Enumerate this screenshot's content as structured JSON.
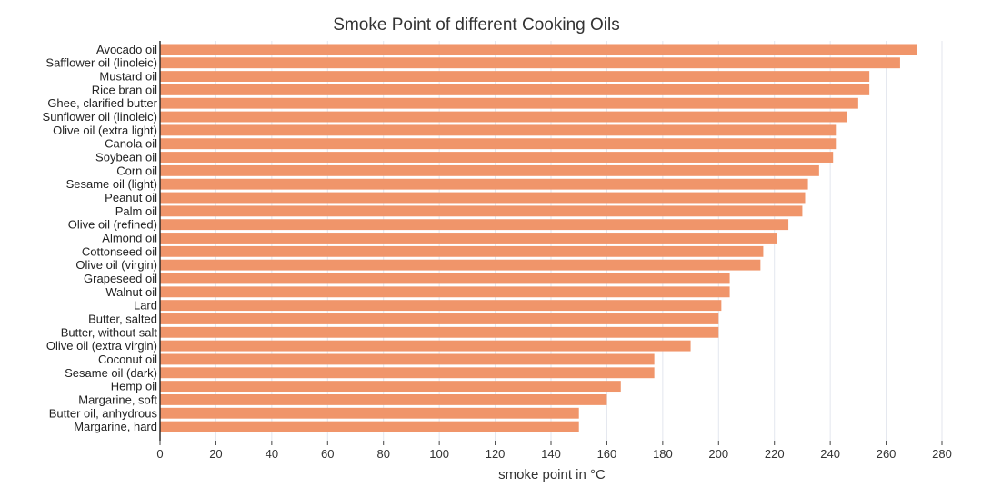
{
  "chart_data": {
    "type": "bar",
    "orientation": "horizontal",
    "title": "Smoke Point of different Cooking Oils",
    "xlabel": "smoke point in °C",
    "ylabel": "",
    "xlim": [
      0,
      280
    ],
    "xticks": [
      "0",
      "20",
      "40",
      "60",
      "80",
      "100",
      "120",
      "140",
      "160",
      "180",
      "200",
      "220",
      "240",
      "260",
      "280"
    ],
    "grid": "vertical",
    "bar_color": "#f0956a",
    "categories": [
      "Avocado oil",
      "Safflower oil (linoleic)",
      "Mustard oil",
      "Rice bran oil",
      "Ghee, clarified butter",
      "Sunflower oil (linoleic)",
      "Olive oil (extra light)",
      "Canola oil",
      "Soybean oil",
      "Corn oil",
      "Sesame oil (light)",
      "Peanut oil",
      "Palm oil",
      "Olive oil (refined)",
      "Almond oil",
      "Cottonseed oil",
      "Olive oil (virgin)",
      "Grapeseed oil",
      "Walnut oil",
      "Lard",
      "Butter, salted",
      "Butter, without salt",
      "Olive oil (extra virgin)",
      "Coconut oil",
      "Sesame oil (dark)",
      "Hemp oil",
      "Margarine, soft",
      "Butter oil, anhydrous",
      "Margarine, hard"
    ],
    "values": [
      271,
      265,
      254,
      254,
      250,
      246,
      242,
      242,
      241,
      236,
      232,
      231,
      230,
      225,
      221,
      216,
      215,
      204,
      204,
      201,
      200,
      200,
      190,
      177,
      177,
      165,
      160,
      150,
      150
    ]
  }
}
